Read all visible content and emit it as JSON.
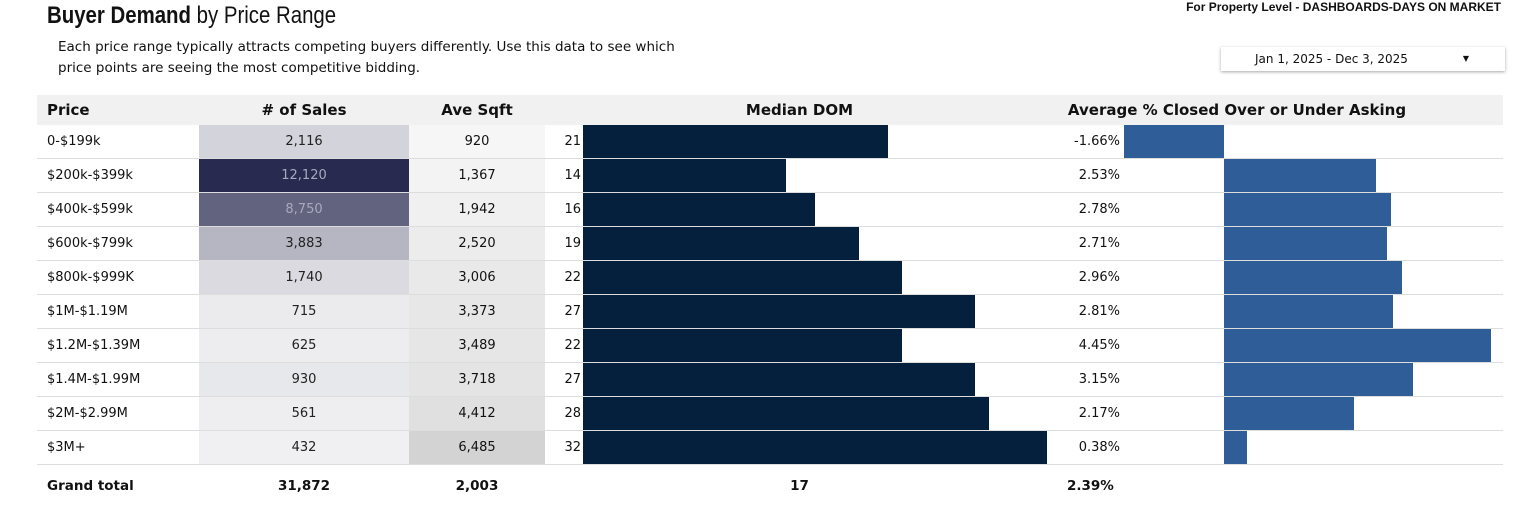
{
  "header": {
    "title_bold": "Buyer Demand",
    "title_rest": " by Price Range",
    "description": "Each price range typically attracts competing buyers differently.  Use this data to see which price points are seeing the most competitive bidding.",
    "top_note": "For Property Level - DASHBOARDS-DAYS ON MARKET",
    "date_range": "Jan 1, 2025 - Dec 3, 2025"
  },
  "table": {
    "columns": [
      "Price",
      "# of Sales",
      "Ave Sqft",
      "Median DOM",
      "Average % Closed Over or Under Asking"
    ],
    "rows": [
      {
        "price": "0-$199k",
        "sales": "2,116",
        "sqft": "920",
        "dom": "21",
        "pct": "-1.66%"
      },
      {
        "price": "$200k-$399k",
        "sales": "12,120",
        "sqft": "1,367",
        "dom": "14",
        "pct": "2.53%"
      },
      {
        "price": "$400k-$599k",
        "sales": "8,750",
        "sqft": "1,942",
        "dom": "16",
        "pct": "2.78%"
      },
      {
        "price": "$600k-$799k",
        "sales": "3,883",
        "sqft": "2,520",
        "dom": "19",
        "pct": "2.71%"
      },
      {
        "price": "$800k-$999K",
        "sales": "1,740",
        "sqft": "3,006",
        "dom": "22",
        "pct": "2.96%"
      },
      {
        "price": "$1M-$1.19M",
        "sales": "715",
        "sqft": "3,373",
        "dom": "27",
        "pct": "2.81%"
      },
      {
        "price": "$1.2M-$1.39M",
        "sales": "625",
        "sqft": "3,489",
        "dom": "22",
        "pct": "4.45%"
      },
      {
        "price": "$1.4M-$1.99M",
        "sales": "930",
        "sqft": "3,718",
        "dom": "27",
        "pct": "3.15%"
      },
      {
        "price": "$2M-$2.99M",
        "sales": "561",
        "sqft": "4,412",
        "dom": "28",
        "pct": "2.17%"
      },
      {
        "price": "$3M+",
        "sales": "432",
        "sqft": "6,485",
        "dom": "32",
        "pct": "0.38%"
      }
    ],
    "total": {
      "label": "Grand total",
      "sales": "31,872",
      "sqft": "2,003",
      "dom": "17",
      "pct": "2.39%"
    }
  },
  "colors": {
    "dom_bar": "#04203d",
    "pct_bar": "#2f5d98",
    "sales_heat_high": "#282a50",
    "sales_heat_low": "#f0f0f2",
    "sqft_heat_high": "#d3d3d3",
    "sqft_heat_low": "#f6f6f6"
  }
}
